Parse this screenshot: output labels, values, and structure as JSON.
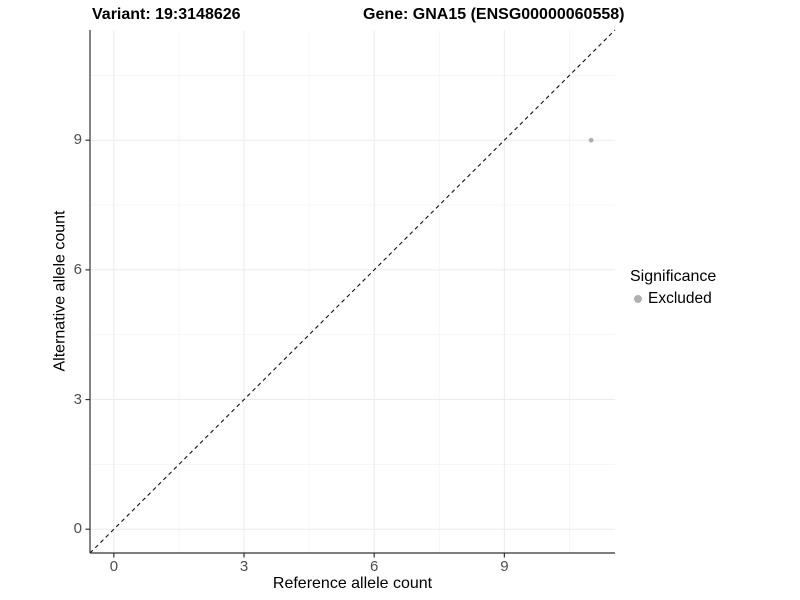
{
  "chart_data": {
    "type": "scatter",
    "titles": {
      "left": "Variant: 19:3148626",
      "right": "Gene: GNA15 (ENSG00000060558)"
    },
    "xlabel": "Reference allele count",
    "ylabel": "Alternative allele count",
    "xlim": [
      -0.55,
      11.55
    ],
    "ylim": [
      -0.55,
      11.55
    ],
    "x_ticks": [
      0,
      3,
      6,
      9
    ],
    "y_ticks": [
      0,
      3,
      6,
      9
    ],
    "x_minor_ticks": [
      1.5,
      4.5,
      7.5,
      10.5
    ],
    "y_minor_ticks": [
      1.5,
      4.5,
      7.5,
      10.5
    ],
    "grid": true,
    "identity_line": {
      "style": "dashed",
      "from": [
        -0.55,
        -0.55
      ],
      "to": [
        11.55,
        11.55
      ],
      "color": "#111111"
    },
    "series": [
      {
        "name": "Excluded",
        "color": "#b0b0b0",
        "points": [
          [
            11,
            9
          ]
        ]
      }
    ],
    "legend": {
      "title": "Significance",
      "position": "right",
      "items": [
        {
          "label": "Excluded",
          "color": "#b0b0b0"
        }
      ]
    }
  },
  "colors": {
    "background": "#ffffff",
    "axis_line": "#333333",
    "tick_label": "#4d4d4d",
    "grid_major": "#ebebeb",
    "grid_minor": "#f4f4f4",
    "point": "#b0b0b0"
  }
}
